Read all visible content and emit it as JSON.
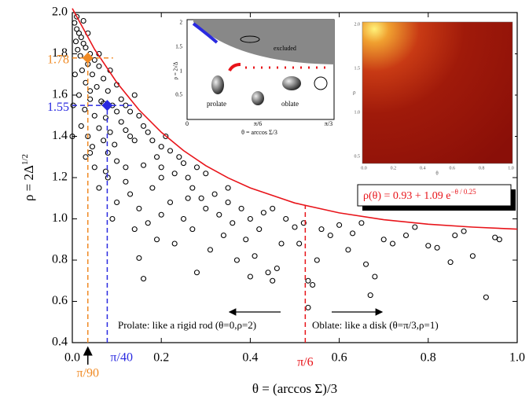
{
  "chart_data": {
    "type": "scatter",
    "x_label": "θ = (arccos Σ)/3",
    "y_label": "ρ = 2Δ",
    "y_label_sup": "1/2",
    "xlim": [
      0,
      1
    ],
    "ylim": [
      0.4,
      2.0
    ],
    "xticks": [
      {
        "value": 0,
        "label": "0.0"
      },
      0.2,
      0.4,
      0.6,
      0.8,
      {
        "value": 1,
        "label": "1.0"
      }
    ],
    "yticks": [
      0.4,
      0.6,
      0.8,
      {
        "value": 1,
        "label": "1.0"
      },
      1.2,
      1.4,
      1.6,
      1.8,
      {
        "value": 2,
        "label": "2.0"
      }
    ],
    "color": "#000000",
    "x": [
      0.005,
      0.01,
      0.015,
      0.02,
      0.008,
      0.025,
      0.03,
      0.012,
      0.04,
      0.018,
      0.05,
      0.035,
      0.06,
      0.022,
      0.045,
      0.07,
      0.03,
      0.055,
      0.08,
      0.015,
      0.04,
      0.065,
      0.09,
      0.028,
      0.05,
      0.075,
      0.1,
      0.02,
      0.06,
      0.085,
      0.11,
      0.035,
      0.07,
      0.12,
      0.045,
      0.095,
      0.13,
      0.03,
      0.08,
      0.14,
      0.05,
      0.1,
      0.0,
      0.002,
      0.006,
      0.01,
      0.04,
      0.07,
      0.11,
      0.12,
      0.13,
      0.15,
      0.16,
      0.14,
      0.1,
      0.085,
      0.06,
      0.035,
      0.025,
      0.17,
      0.18,
      0.2,
      0.19,
      0.16,
      0.21,
      0.22,
      0.24,
      0.23,
      0.2,
      0.18,
      0.25,
      0.26,
      0.27,
      0.28,
      0.3,
      0.29,
      0.22,
      0.2,
      0.17,
      0.15,
      0.13,
      0.12,
      0.1,
      0.14,
      0.15,
      0.16,
      0.19,
      0.23,
      0.25,
      0.27,
      0.3,
      0.32,
      0.33,
      0.35,
      0.34,
      0.31,
      0.28,
      0.36,
      0.38,
      0.4,
      0.39,
      0.37,
      0.4,
      0.42,
      0.43,
      0.41,
      0.44,
      0.45,
      0.46,
      0.47,
      0.48,
      0.5,
      0.52,
      0.51,
      0.53,
      0.54,
      0.55,
      0.53,
      0.56,
      0.58,
      0.6,
      0.62,
      0.63,
      0.65,
      0.66,
      0.68,
      0.67,
      0.7,
      0.72,
      0.75,
      0.77,
      0.8,
      0.82,
      0.85,
      0.88,
      0.9,
      0.93,
      0.95,
      0.96,
      0.86,
      0.12,
      0.08,
      0.06,
      0.09,
      0.075,
      0.04,
      0.2,
      0.26,
      0.35,
      0.45
    ],
    "values": [
      1.95,
      1.92,
      1.9,
      1.88,
      1.86,
      1.85,
      1.83,
      1.82,
      1.8,
      1.79,
      1.77,
      1.75,
      1.74,
      1.72,
      1.7,
      1.68,
      1.66,
      1.64,
      1.62,
      1.6,
      1.58,
      1.57,
      1.55,
      1.53,
      1.5,
      1.49,
      1.52,
      1.45,
      1.44,
      1.42,
      1.47,
      1.4,
      1.38,
      1.43,
      1.35,
      1.36,
      1.4,
      1.3,
      1.32,
      1.38,
      1.25,
      1.28,
      1.4,
      1.55,
      1.7,
      1.98,
      1.62,
      1.56,
      1.58,
      1.55,
      1.52,
      1.5,
      1.45,
      1.6,
      1.65,
      1.72,
      1.8,
      1.9,
      1.96,
      1.42,
      1.38,
      1.35,
      1.3,
      1.26,
      1.4,
      1.33,
      1.3,
      1.22,
      1.2,
      1.15,
      1.27,
      1.2,
      1.15,
      1.25,
      1.22,
      1.1,
      1.08,
      1.02,
      0.98,
      1.05,
      1.12,
      1.18,
      1.08,
      0.95,
      0.81,
      0.71,
      0.9,
      0.88,
      1.0,
      0.95,
      1.05,
      1.12,
      1.02,
      1.08,
      0.92,
      0.85,
      0.74,
      0.98,
      1.05,
      1.0,
      0.9,
      0.8,
      0.72,
      0.95,
      1.03,
      0.82,
      0.74,
      0.7,
      0.76,
      0.88,
      1.0,
      0.96,
      0.98,
      0.88,
      0.7,
      0.68,
      0.8,
      0.57,
      0.95,
      0.92,
      0.97,
      0.85,
      0.93,
      0.98,
      0.78,
      0.72,
      0.63,
      0.9,
      0.88,
      0.92,
      0.96,
      0.87,
      0.86,
      0.79,
      0.94,
      0.82,
      0.62,
      0.91,
      0.9,
      0.92,
      1.25,
      1.2,
      1.15,
      1.0,
      1.23,
      1.32,
      1.25,
      1.1,
      1.15,
      1.05
    ],
    "fit": {
      "color": "#e8141a",
      "x": [
        0,
        0.05,
        0.1,
        0.15,
        0.2,
        0.25,
        0.3,
        0.35,
        0.4,
        0.5,
        0.6,
        0.7,
        0.8,
        0.9,
        1.0
      ],
      "values": [
        2.02,
        1.822,
        1.661,
        1.528,
        1.42,
        1.331,
        1.258,
        1.199,
        1.15,
        1.077,
        1.029,
        0.996,
        0.974,
        0.96,
        0.95
      ],
      "label": "ρ(θ) = 0.93 + 1.09 e",
      "label_sup": "−θ / 0.25"
    },
    "highlights": [
      {
        "x": 0.0349,
        "value": 1.78,
        "color": "#f08a24",
        "value_label": "1.78",
        "x_label": "π/90"
      },
      {
        "x": 0.0785,
        "value": 1.55,
        "color": "#2a2ae0",
        "value_label": "1.55",
        "x_label": "π/40"
      }
    ],
    "reference_line": {
      "x": 0.5236,
      "label": "π/6",
      "color": "#e8141a"
    },
    "annotations": [
      "Prolate: like a rigid rod (θ=0,ρ=2)",
      "Oblate: like a disk  (θ=π/3,ρ=1)"
    ]
  },
  "left_inset": {
    "y_label": "ρ = 2√Δ",
    "x_label": "θ = arccos Σ/3",
    "yticks": [
      "2",
      "1.5",
      "1",
      "0.5"
    ],
    "xticks": [
      "0",
      "π/6",
      "π/3"
    ],
    "excluded": "excluded",
    "prolate": "prolate",
    "oblate": "oblate"
  },
  "right_inset": {
    "y_label": "ρ",
    "x_label": "θ",
    "yticks": [
      "2.0",
      "1.5",
      "1.0",
      "0.5"
    ],
    "xticks": [
      "0.0",
      "0.2",
      "0.4",
      "0.6",
      "0.8",
      "1.0"
    ]
  }
}
